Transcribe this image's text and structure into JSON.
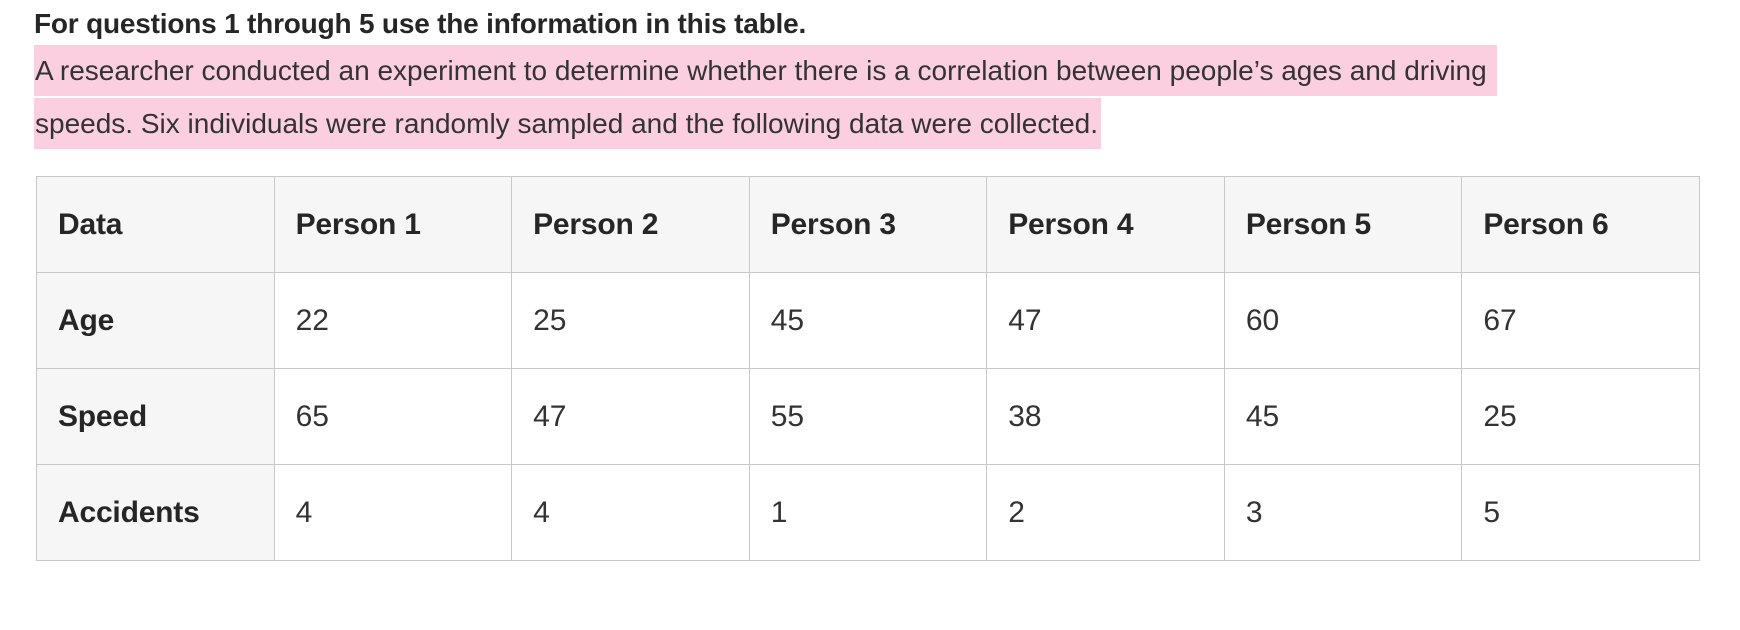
{
  "page": {
    "heading": "For questions 1 through 5 use the information in this table.",
    "description_lines": [
      "A researcher conducted an experiment to determine whether there is a correlation between people’s ages and driving ",
      "speeds. Six individuals were randomly sampled and the following data were collected."
    ],
    "highlight_color": "#fbcfe0",
    "text_color": "#2d2d2d"
  },
  "table": {
    "border_color": "#c9c9c9",
    "header_bg": "#f6f6f6",
    "columns": [
      "Data",
      "Person 1",
      "Person 2",
      "Person 3",
      "Person 4",
      "Person 5",
      "Person 6"
    ],
    "rows": [
      {
        "label": "Age",
        "values": [
          "22",
          "25",
          "45",
          "47",
          "60",
          "67"
        ]
      },
      {
        "label": "Speed",
        "values": [
          "65",
          "47",
          "55",
          "38",
          "45",
          "25"
        ]
      },
      {
        "label": "Accidents",
        "values": [
          "4",
          "4",
          "1",
          "2",
          "3",
          "5"
        ]
      }
    ]
  }
}
